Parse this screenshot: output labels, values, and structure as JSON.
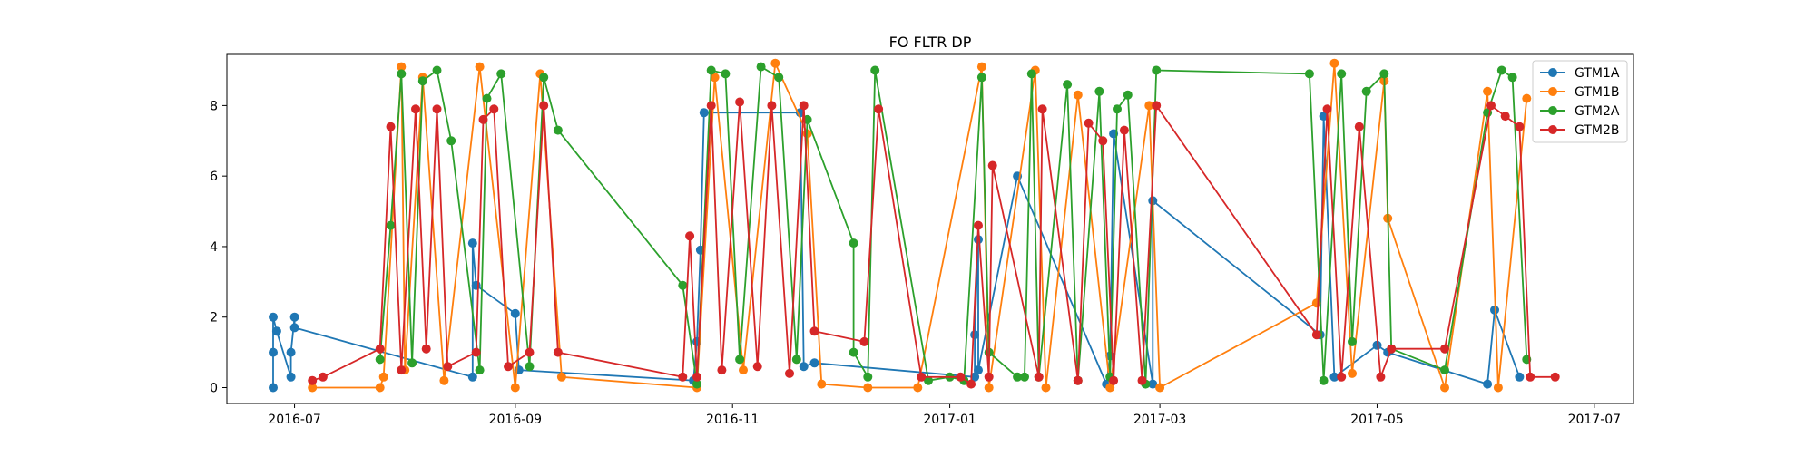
{
  "chart_data": {
    "type": "line",
    "title": "FO FLTR DP",
    "xlabel": "",
    "ylabel": "",
    "x_axis": {
      "kind": "date",
      "range": [
        "2016-06-12",
        "2017-07-12"
      ],
      "ticks": [
        "2016-07-01",
        "2016-09-01",
        "2016-11-01",
        "2017-01-01",
        "2017-03-01",
        "2017-05-01",
        "2017-07-01"
      ],
      "tick_labels": [
        "2016-07",
        "2016-09",
        "2016-11",
        "2017-01",
        "2017-03",
        "2017-05",
        "2017-07"
      ]
    },
    "y_axis": {
      "range": [
        -0.45,
        9.45
      ],
      "ticks": [
        0,
        2,
        4,
        6,
        8
      ],
      "tick_labels": [
        "0",
        "2",
        "4",
        "6",
        "8"
      ]
    },
    "grid": false,
    "legend": {
      "placement": "top-right",
      "entries": [
        "GTM1A",
        "GTM1B",
        "GTM2A",
        "GTM2B"
      ]
    },
    "marker": "circle",
    "series": [
      {
        "name": "GTM1A",
        "color": "#1f77b4",
        "x": [
          "2016-06-25",
          "2016-06-25",
          "2016-06-25",
          "2016-06-26",
          "2016-06-30",
          "2016-06-30",
          "2016-07-01",
          "2016-07-01",
          "2016-08-20",
          "2016-08-20",
          "2016-08-21",
          "2016-09-01",
          "2016-09-02",
          "2016-10-21",
          "2016-10-22",
          "2016-10-23",
          "2016-10-24",
          "2016-11-20",
          "2016-11-21",
          "2016-11-24",
          "2017-01-08",
          "2017-01-08",
          "2017-01-09",
          "2017-01-09",
          "2017-01-20",
          "2017-02-14",
          "2017-02-15",
          "2017-02-16",
          "2017-02-27",
          "2017-02-27",
          "2017-04-15",
          "2017-04-16",
          "2017-04-19",
          "2017-05-01",
          "2017-05-04",
          "2017-06-01",
          "2017-06-03",
          "2017-06-10"
        ],
        "y": [
          0.0,
          1.0,
          2.0,
          1.6,
          0.3,
          1.0,
          2.0,
          1.7,
          0.3,
          4.1,
          2.9,
          2.1,
          0.5,
          0.2,
          1.3,
          3.9,
          7.8,
          7.8,
          0.6,
          0.7,
          0.3,
          1.5,
          4.2,
          0.5,
          6.0,
          0.1,
          0.9,
          7.2,
          0.1,
          5.3,
          1.5,
          7.7,
          0.3,
          1.2,
          1.0,
          0.1,
          2.2,
          0.3
        ]
      },
      {
        "name": "GTM1B",
        "color": "#ff7f0e",
        "x": [
          "2016-07-06",
          "2016-07-25",
          "2016-07-26",
          "2016-07-31",
          "2016-08-01",
          "2016-08-06",
          "2016-08-12",
          "2016-08-22",
          "2016-09-01",
          "2016-09-08",
          "2016-09-14",
          "2016-10-22",
          "2016-10-27",
          "2016-11-04",
          "2016-11-13",
          "2016-11-22",
          "2016-11-26",
          "2016-12-09",
          "2016-12-23",
          "2017-01-10",
          "2017-01-12",
          "2017-01-25",
          "2017-01-28",
          "2017-02-06",
          "2017-02-15",
          "2017-02-26",
          "2017-03-01",
          "2017-04-14",
          "2017-04-19",
          "2017-04-24",
          "2017-05-03",
          "2017-05-04",
          "2017-05-20",
          "2017-06-01",
          "2017-06-04",
          "2017-06-12"
        ],
        "y": [
          0.0,
          0.0,
          0.3,
          9.1,
          0.5,
          8.8,
          0.2,
          9.1,
          0.0,
          8.9,
          0.3,
          0.0,
          8.8,
          0.5,
          9.2,
          7.2,
          0.1,
          0.0,
          0.0,
          9.1,
          0.0,
          9.0,
          0.0,
          8.3,
          0.0,
          8.0,
          0.0,
          2.4,
          9.2,
          0.4,
          8.7,
          4.8,
          0.0,
          8.4,
          0.0,
          8.2
        ]
      },
      {
        "name": "GTM2A",
        "color": "#2ca02c",
        "x": [
          "2016-07-25",
          "2016-07-28",
          "2016-07-31",
          "2016-08-03",
          "2016-08-06",
          "2016-08-10",
          "2016-08-14",
          "2016-08-22",
          "2016-08-24",
          "2016-08-28",
          "2016-09-05",
          "2016-09-09",
          "2016-09-13",
          "2016-10-18",
          "2016-10-22",
          "2016-10-26",
          "2016-10-30",
          "2016-11-03",
          "2016-11-09",
          "2016-11-14",
          "2016-11-19",
          "2016-11-22",
          "2016-12-05",
          "2016-12-05",
          "2016-12-09",
          "2016-12-11",
          "2016-12-26",
          "2017-01-01",
          "2017-01-05",
          "2017-01-10",
          "2017-01-12",
          "2017-01-20",
          "2017-01-22",
          "2017-01-24",
          "2017-01-26",
          "2017-02-03",
          "2017-02-06",
          "2017-02-12",
          "2017-02-15",
          "2017-02-17",
          "2017-02-20",
          "2017-02-25",
          "2017-02-28",
          "2017-04-12",
          "2017-04-16",
          "2017-04-21",
          "2017-04-24",
          "2017-04-28",
          "2017-05-03",
          "2017-05-05",
          "2017-05-20",
          "2017-06-01",
          "2017-06-05",
          "2017-06-08",
          "2017-06-12"
        ],
        "y": [
          0.8,
          4.6,
          8.9,
          0.7,
          8.7,
          9.0,
          7.0,
          0.5,
          8.2,
          8.9,
          0.6,
          8.8,
          7.3,
          2.9,
          0.1,
          9.0,
          8.9,
          0.8,
          9.1,
          8.8,
          0.8,
          7.6,
          4.1,
          1.0,
          0.3,
          9.0,
          0.2,
          0.3,
          0.2,
          8.8,
          1.0,
          0.3,
          0.3,
          8.9,
          0.3,
          8.6,
          0.2,
          8.4,
          0.3,
          7.9,
          8.3,
          0.1,
          9.0,
          8.9,
          0.2,
          8.9,
          1.3,
          8.4,
          8.9,
          1.1,
          0.5,
          7.8,
          9.0,
          8.8,
          0.8
        ]
      },
      {
        "name": "GTM2B",
        "color": "#d62728",
        "x": [
          "2016-07-06",
          "2016-07-09",
          "2016-07-25",
          "2016-07-28",
          "2016-07-31",
          "2016-08-04",
          "2016-08-07",
          "2016-08-10",
          "2016-08-13",
          "2016-08-21",
          "2016-08-23",
          "2016-08-26",
          "2016-08-30",
          "2016-09-05",
          "2016-09-09",
          "2016-09-13",
          "2016-10-18",
          "2016-10-20",
          "2016-10-22",
          "2016-10-26",
          "2016-10-29",
          "2016-11-03",
          "2016-11-08",
          "2016-11-12",
          "2016-11-17",
          "2016-11-21",
          "2016-11-24",
          "2016-12-08",
          "2016-12-12",
          "2016-12-24",
          "2017-01-04",
          "2017-01-07",
          "2017-01-09",
          "2017-01-12",
          "2017-01-13",
          "2017-01-26",
          "2017-01-27",
          "2017-02-06",
          "2017-02-09",
          "2017-02-13",
          "2017-02-16",
          "2017-02-19",
          "2017-02-24",
          "2017-02-28",
          "2017-04-14",
          "2017-04-17",
          "2017-04-21",
          "2017-04-26",
          "2017-05-02",
          "2017-05-05",
          "2017-05-20",
          "2017-06-02",
          "2017-06-06",
          "2017-06-10",
          "2017-06-13",
          "2017-06-20"
        ],
        "y": [
          0.2,
          0.3,
          1.1,
          7.4,
          0.5,
          7.9,
          1.1,
          7.9,
          0.6,
          1.0,
          7.6,
          7.9,
          0.6,
          1.0,
          8.0,
          1.0,
          0.3,
          4.3,
          0.3,
          8.0,
          0.5,
          8.1,
          0.6,
          8.0,
          0.4,
          8.0,
          1.6,
          1.3,
          7.9,
          0.3,
          0.3,
          0.1,
          4.6,
          0.3,
          6.3,
          0.3,
          7.9,
          0.2,
          7.5,
          7.0,
          0.2,
          7.3,
          0.2,
          8.0,
          1.5,
          7.9,
          0.3,
          7.4,
          0.3,
          1.1,
          1.1,
          8.0,
          7.7,
          7.4,
          0.3,
          0.3
        ]
      }
    ]
  }
}
